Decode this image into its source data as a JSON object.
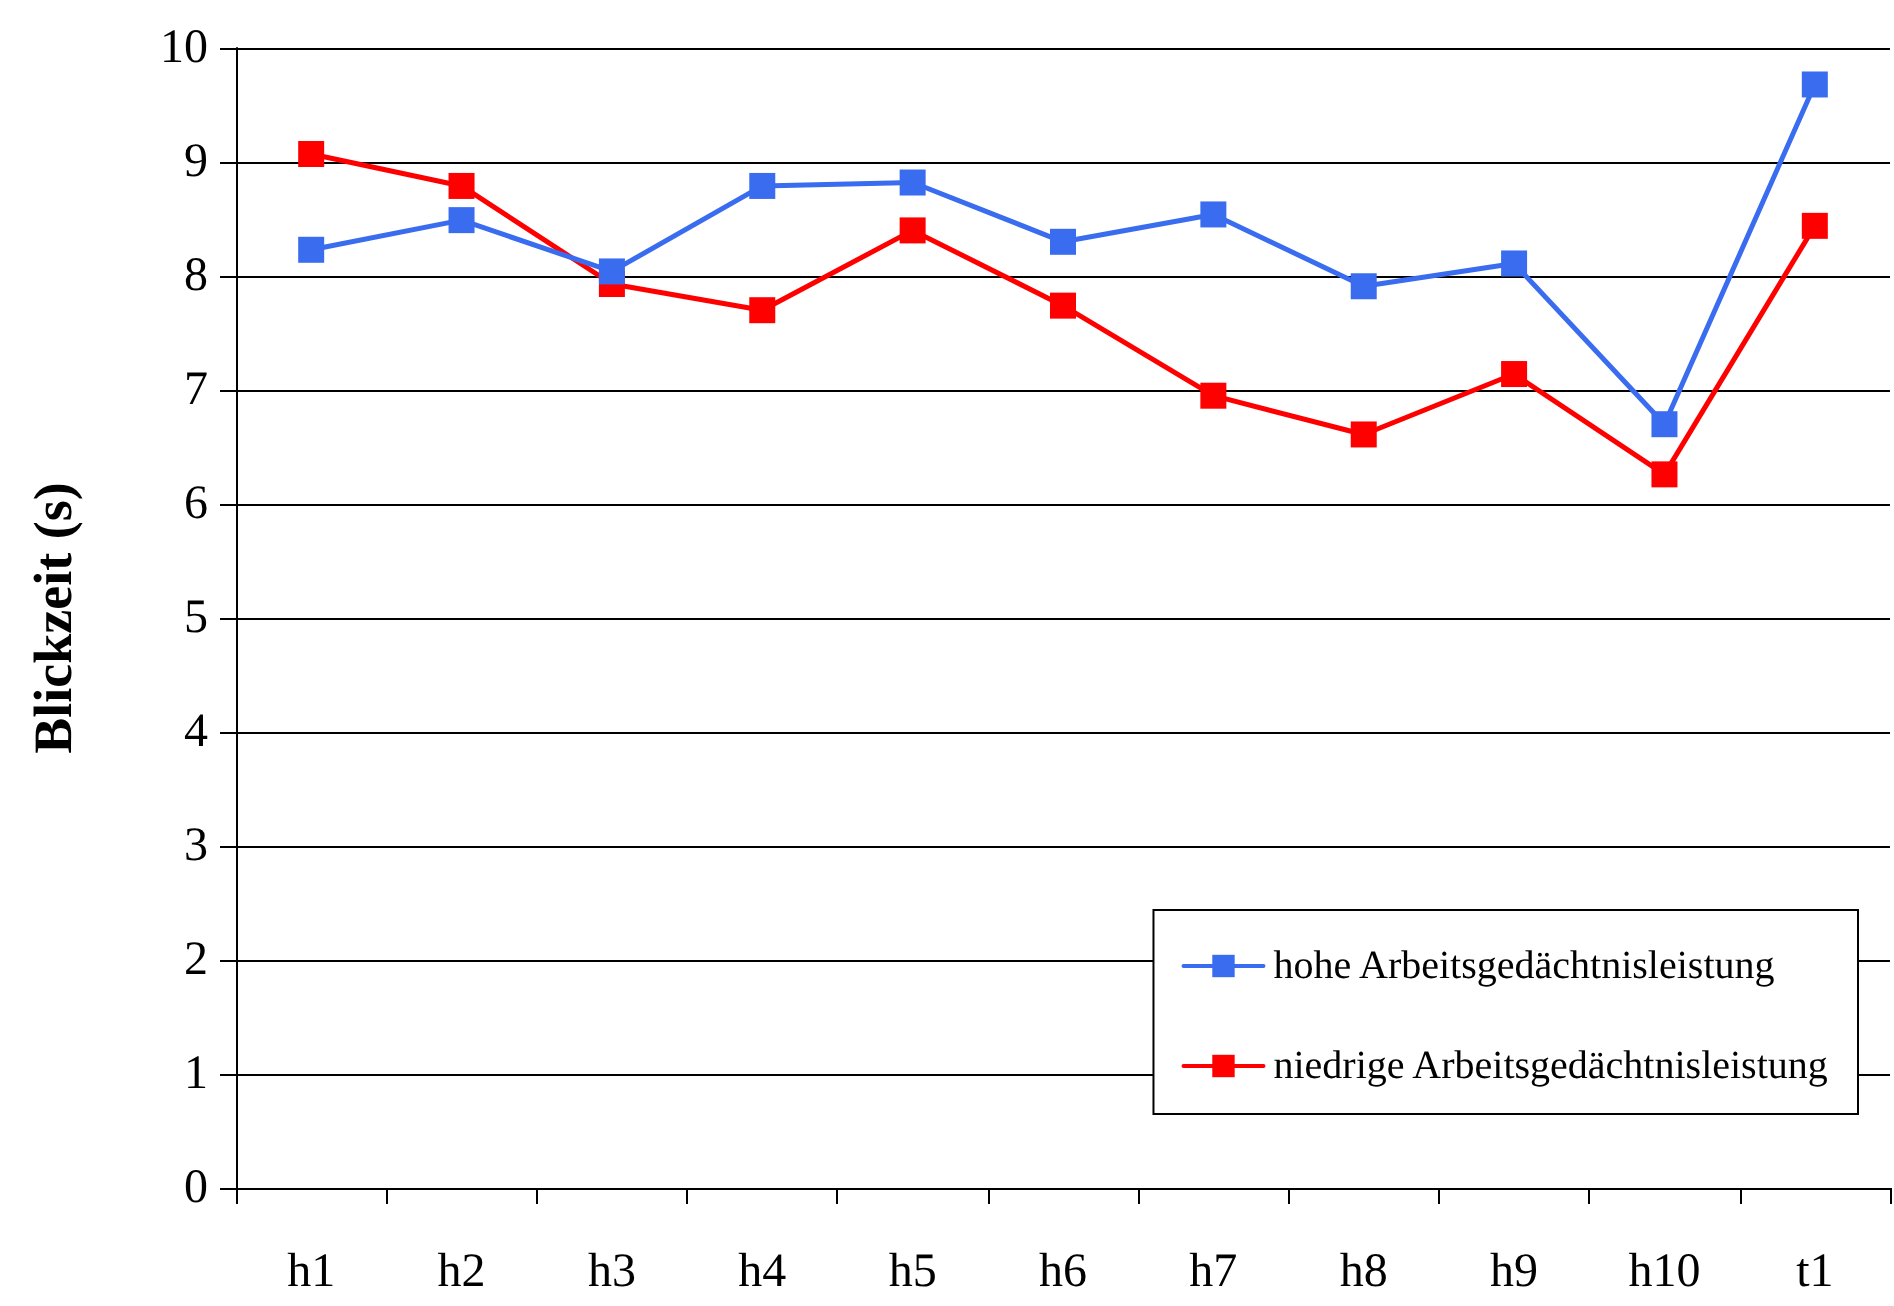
{
  "chart_data": {
    "type": "line",
    "ylabel": "Blickzeit (s)",
    "categories": [
      "h1",
      "h2",
      "h3",
      "h4",
      "h5",
      "h6",
      "h7",
      "h8",
      "h9",
      "h10",
      "t1"
    ],
    "series": [
      {
        "name": "hohe Arbeitsgedächtnisleistung",
        "color": "#3a6cf0",
        "values": [
          8.23,
          8.49,
          8.04,
          8.79,
          8.82,
          8.3,
          8.54,
          7.91,
          8.11,
          6.7,
          9.68
        ]
      },
      {
        "name": "niedrige Arbeitsgedächtnisleistung",
        "color": "#ff0000",
        "values": [
          9.07,
          8.79,
          7.93,
          7.7,
          8.4,
          7.74,
          6.95,
          6.61,
          7.14,
          6.26,
          8.44
        ]
      }
    ],
    "ylim": [
      0,
      10
    ],
    "yticks": [
      0,
      1,
      2,
      3,
      4,
      5,
      6,
      7,
      8,
      9,
      10
    ],
    "grid": "y",
    "legend": "bottom right",
    "marker": "square",
    "line_style": "solid"
  }
}
